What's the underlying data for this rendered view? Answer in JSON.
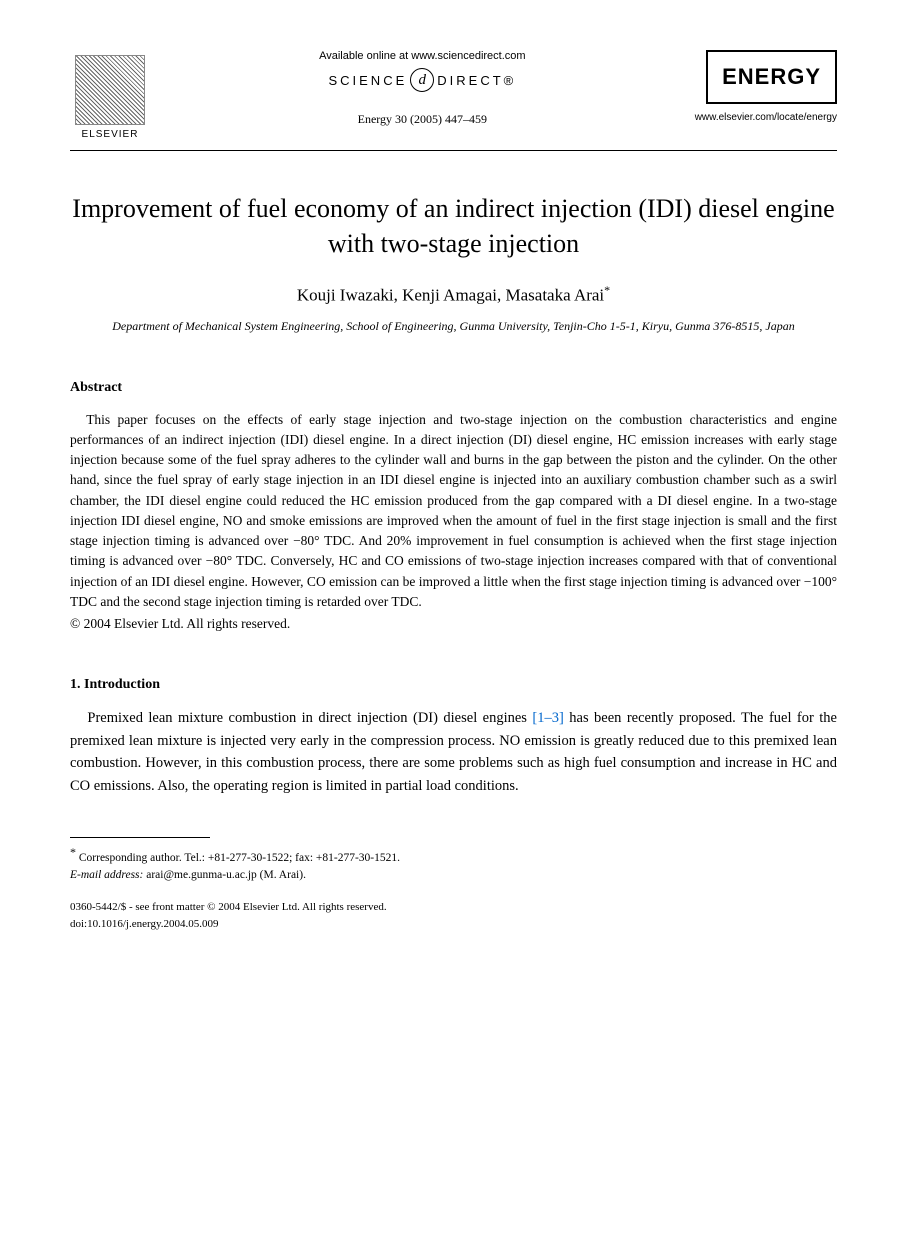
{
  "header": {
    "publisher_name": "ELSEVIER",
    "available_online": "Available online at www.sciencedirect.com",
    "science_direct_left": "SCIENCE",
    "science_direct_d": "d",
    "science_direct_right": "DIRECT®",
    "citation": "Energy 30 (2005) 447–459",
    "journal_name": "ENERGY",
    "journal_url": "www.elsevier.com/locate/energy"
  },
  "article": {
    "title": "Improvement of fuel economy of an indirect injection (IDI) diesel engine with two-stage injection",
    "authors": "Kouji Iwazaki, Kenji Amagai, Masataka Arai",
    "corresponding_mark": "*",
    "affiliation": "Department of Mechanical System Engineering, School of Engineering, Gunma University, Tenjin-Cho 1-5-1, Kiryu, Gunma 376-8515, Japan"
  },
  "abstract": {
    "heading": "Abstract",
    "body": "This paper focuses on the effects of early stage injection and two-stage injection on the combustion characteristics and engine performances of an indirect injection (IDI) diesel engine. In a direct injection (DI) diesel engine, HC emission increases with early stage injection because some of the fuel spray adheres to the cylinder wall and burns in the gap between the piston and the cylinder. On the other hand, since the fuel spray of early stage injection in an IDI diesel engine is injected into an auxiliary combustion chamber such as a swirl chamber, the IDI diesel engine could reduced the HC emission produced from the gap compared with a DI diesel engine. In a two-stage injection IDI diesel engine, NO and smoke emissions are improved when the amount of fuel in the first stage injection is small and the first stage injection timing is advanced over −80° TDC. And 20% improvement in fuel consumption is achieved when the first stage injection timing is advanced over −80° TDC. Conversely, HC and CO emissions of two-stage injection increases compared with that of conventional injection of an IDI diesel engine. However, CO emission can be improved a little when the first stage injection timing is advanced over −100° TDC and the second stage injection timing is retarded over TDC.",
    "copyright": "© 2004 Elsevier Ltd. All rights reserved."
  },
  "introduction": {
    "heading": "1.  Introduction",
    "body_pre": "Premixed lean mixture combustion in direct injection (DI) diesel engines ",
    "cite": "[1–3]",
    "body_post": " has been recently proposed. The fuel for the premixed lean mixture is injected very early in the compression process. NO emission is greatly reduced due to this premixed lean combustion. However, in this combustion process, there are some problems such as high fuel consumption and increase in HC and CO emissions. Also, the operating region is limited in partial load conditions."
  },
  "footnote": {
    "corresponding": "Corresponding author. Tel.: +81-277-30-1522; fax: +81-277-30-1521.",
    "email_label": "E-mail address:",
    "email": "arai@me.gunma-u.ac.jp (M. Arai)."
  },
  "footer": {
    "issn": "0360-5442/$ - see front matter © 2004 Elsevier Ltd. All rights reserved.",
    "doi": "doi:10.1016/j.energy.2004.05.009"
  },
  "colors": {
    "text": "#000000",
    "link": "#0066cc",
    "background": "#ffffff"
  },
  "typography": {
    "title_fontsize": 26,
    "authors_fontsize": 17,
    "affiliation_fontsize": 12,
    "body_fontsize": 13.5,
    "intro_fontsize": 14.5,
    "footnote_fontsize": 11.5,
    "footer_fontsize": 11
  }
}
